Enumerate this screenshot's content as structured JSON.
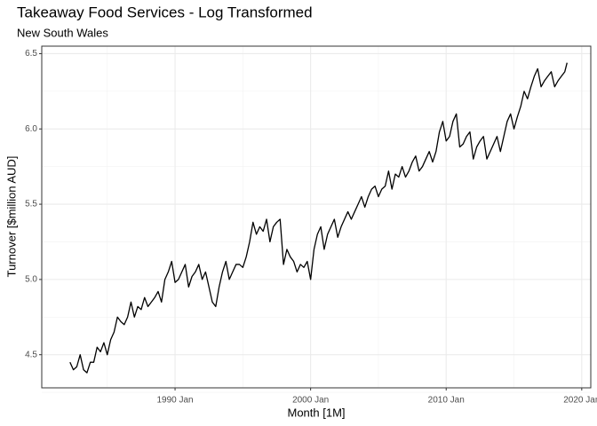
{
  "chart_data": {
    "type": "line",
    "title": "Takeaway Food Services - Log Transformed",
    "subtitle": "New South Wales",
    "x_label": "Month [1M]",
    "y_label": "Turnover [$million AUD]",
    "x": [
      "1982 Apr",
      "1982 Jul",
      "1982 Oct",
      "1983 Jan",
      "1983 Apr",
      "1983 Jul",
      "1983 Oct",
      "1984 Jan",
      "1984 Apr",
      "1984 Jul",
      "1984 Oct",
      "1985 Jan",
      "1985 Apr",
      "1985 Jul",
      "1985 Oct",
      "1986 Jan",
      "1986 Apr",
      "1986 Jul",
      "1986 Oct",
      "1987 Jan",
      "1987 Apr",
      "1987 Jul",
      "1987 Oct",
      "1988 Jan",
      "1988 Apr",
      "1988 Jul",
      "1988 Oct",
      "1989 Jan",
      "1989 Apr",
      "1989 Jul",
      "1989 Oct",
      "1990 Jan",
      "1990 Apr",
      "1990 Jul",
      "1990 Oct",
      "1991 Jan",
      "1991 Apr",
      "1991 Jul",
      "1991 Oct",
      "1992 Jan",
      "1992 Apr",
      "1992 Jul",
      "1992 Oct",
      "1993 Jan",
      "1993 Apr",
      "1993 Jul",
      "1993 Oct",
      "1994 Jan",
      "1994 Apr",
      "1994 Jul",
      "1994 Oct",
      "1995 Jan",
      "1995 Apr",
      "1995 Jul",
      "1995 Oct",
      "1996 Jan",
      "1996 Apr",
      "1996 Jul",
      "1996 Oct",
      "1997 Jan",
      "1997 Apr",
      "1997 Jul",
      "1997 Oct",
      "1998 Jan",
      "1998 Apr",
      "1998 Jul",
      "1998 Oct",
      "1999 Jan",
      "1999 Apr",
      "1999 Jul",
      "1999 Oct",
      "2000 Jan",
      "2000 Apr",
      "2000 Jul",
      "2000 Oct",
      "2001 Jan",
      "2001 Apr",
      "2001 Jul",
      "2001 Oct",
      "2002 Jan",
      "2002 Apr",
      "2002 Jul",
      "2002 Oct",
      "2003 Jan",
      "2003 Apr",
      "2003 Jul",
      "2003 Oct",
      "2004 Jan",
      "2004 Apr",
      "2004 Jul",
      "2004 Oct",
      "2005 Jan",
      "2005 Apr",
      "2005 Jul",
      "2005 Oct",
      "2006 Jan",
      "2006 Apr",
      "2006 Jul",
      "2006 Oct",
      "2007 Jan",
      "2007 Apr",
      "2007 Jul",
      "2007 Oct",
      "2008 Jan",
      "2008 Apr",
      "2008 Jul",
      "2008 Oct",
      "2009 Jan",
      "2009 Apr",
      "2009 Jul",
      "2009 Oct",
      "2010 Jan",
      "2010 Apr",
      "2010 Jul",
      "2010 Oct",
      "2011 Jan",
      "2011 Apr",
      "2011 Jul",
      "2011 Oct",
      "2012 Jan",
      "2012 Apr",
      "2012 Jul",
      "2012 Oct",
      "2013 Jan",
      "2013 Apr",
      "2013 Jul",
      "2013 Oct",
      "2014 Jan",
      "2014 Apr",
      "2014 Jul",
      "2014 Oct",
      "2015 Jan",
      "2015 Apr",
      "2015 Jul",
      "2015 Oct",
      "2016 Jan",
      "2016 Apr",
      "2016 Jul",
      "2016 Oct",
      "2017 Jan",
      "2017 Apr",
      "2017 Jul",
      "2017 Oct",
      "2018 Jan",
      "2018 Apr",
      "2018 Jul",
      "2018 Oct",
      "2018 Dec"
    ],
    "series": [
      {
        "name": "Turnover",
        "color": "#000000",
        "values": [
          4.45,
          4.4,
          4.42,
          4.5,
          4.4,
          4.38,
          4.45,
          4.45,
          4.55,
          4.52,
          4.58,
          4.5,
          4.6,
          4.65,
          4.75,
          4.72,
          4.7,
          4.75,
          4.85,
          4.75,
          4.82,
          4.8,
          4.88,
          4.82,
          4.85,
          4.88,
          4.92,
          4.85,
          5.0,
          5.05,
          5.12,
          4.98,
          5.0,
          5.05,
          5.1,
          4.95,
          5.02,
          5.05,
          5.1,
          5.0,
          5.05,
          4.95,
          4.85,
          4.82,
          4.95,
          5.05,
          5.12,
          5.0,
          5.05,
          5.1,
          5.1,
          5.08,
          5.15,
          5.25,
          5.38,
          5.3,
          5.35,
          5.32,
          5.4,
          5.25,
          5.35,
          5.38,
          5.4,
          5.1,
          5.2,
          5.15,
          5.12,
          5.05,
          5.1,
          5.08,
          5.12,
          5.0,
          5.2,
          5.3,
          5.35,
          5.2,
          5.3,
          5.35,
          5.4,
          5.28,
          5.35,
          5.4,
          5.45,
          5.4,
          5.45,
          5.5,
          5.55,
          5.48,
          5.55,
          5.6,
          5.62,
          5.55,
          5.6,
          5.62,
          5.72,
          5.6,
          5.7,
          5.68,
          5.75,
          5.68,
          5.72,
          5.78,
          5.82,
          5.72,
          5.75,
          5.8,
          5.85,
          5.78,
          5.85,
          5.98,
          6.05,
          5.92,
          5.95,
          6.05,
          6.1,
          5.88,
          5.9,
          5.95,
          5.98,
          5.8,
          5.88,
          5.92,
          5.95,
          5.8,
          5.85,
          5.9,
          5.95,
          5.85,
          5.95,
          6.05,
          6.1,
          6.0,
          6.08,
          6.15,
          6.25,
          6.2,
          6.28,
          6.35,
          6.4,
          6.28,
          6.32,
          6.35,
          6.38,
          6.28,
          6.32,
          6.35,
          6.38,
          6.44
        ]
      }
    ],
    "xlim": [
      "1980 Mar",
      "2020 Sep"
    ],
    "xticks": [
      "1990 Jan",
      "2000 Jan",
      "2010 Jan",
      "2020 Jan"
    ],
    "ylim": [
      4.28,
      6.55
    ],
    "yticks": [
      4.5,
      5.0,
      5.5,
      6.0,
      6.5
    ],
    "grid": true
  }
}
